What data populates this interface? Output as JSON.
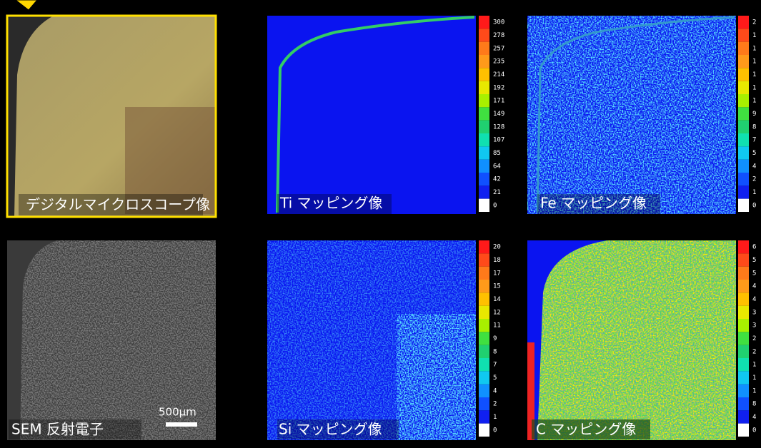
{
  "panels": [
    {
      "label": "デジタルマイクロスコープ像"
    },
    {
      "label": "Ti マッピング像",
      "scale": [
        300,
        278,
        257,
        235,
        214,
        192,
        171,
        149,
        128,
        107,
        85,
        64,
        42,
        21,
        0
      ]
    },
    {
      "label": "Fe マッピング像",
      "scale": [
        2,
        1,
        1,
        1,
        1,
        1,
        1,
        9,
        8,
        7,
        5,
        4,
        2,
        1,
        0
      ]
    },
    {
      "label": "SEM 反射電子",
      "scale_bar": "500μm"
    },
    {
      "label": "Si マッピング像",
      "scale": [
        20,
        18,
        17,
        15,
        14,
        12,
        11,
        9,
        8,
        7,
        5,
        4,
        2,
        1,
        0
      ]
    },
    {
      "label": "C マッピング像",
      "scale": [
        6,
        5,
        5,
        4,
        4,
        3,
        3,
        2,
        2,
        1,
        1,
        1,
        8,
        4,
        0
      ]
    }
  ]
}
